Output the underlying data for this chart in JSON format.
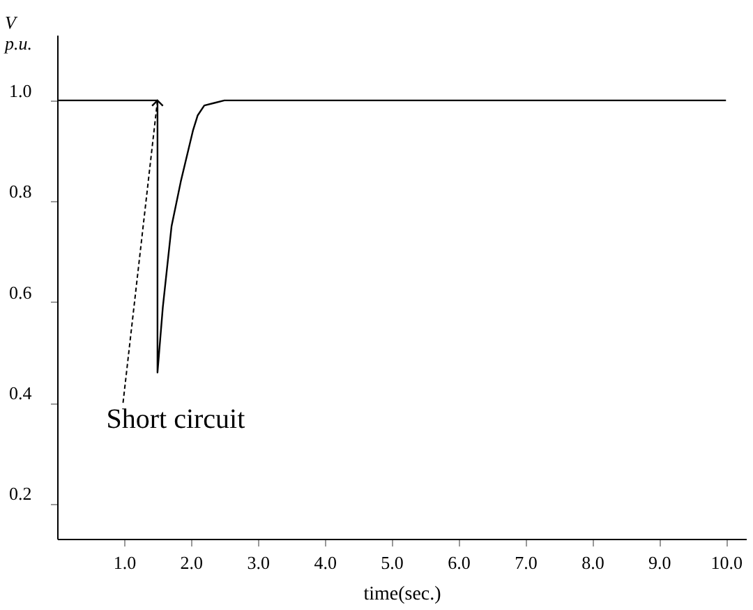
{
  "chart_data": {
    "type": "line",
    "xlabel": "time(sec.)",
    "ylabel": "V\np.u.",
    "series": [
      {
        "color": "#000000",
        "x": [
          0,
          1.5,
          1.5,
          1.58,
          1.71,
          1.85,
          2.03,
          2.1,
          2.2,
          2.35,
          2.5,
          10.0
        ],
        "values": [
          1.0,
          1.0,
          0.46,
          0.59,
          0.75,
          0.84,
          0.94,
          0.97,
          0.99,
          0.995,
          1.0,
          1.0
        ]
      }
    ],
    "xlim": [
      0,
      10.3
    ],
    "ylim": [
      0.13,
      1.13
    ],
    "xticks": [
      {
        "value": 1,
        "label": "1.0"
      },
      {
        "value": 2,
        "label": "2.0"
      },
      {
        "value": 3,
        "label": "3.0"
      },
      {
        "value": 4,
        "label": "4.0"
      },
      {
        "value": 5,
        "label": "5.0"
      },
      {
        "value": 6,
        "label": "6.0"
      },
      {
        "value": 7,
        "label": "7.0"
      },
      {
        "value": 8,
        "label": "8.0"
      },
      {
        "value": 9,
        "label": "9.0"
      },
      {
        "value": 10,
        "label": "10.0"
      }
    ],
    "yticks": [
      0.2,
      0.4,
      0.6,
      0.8,
      {
        "value": 1.0,
        "label": "1.0"
      }
    ],
    "annotations": [
      {
        "text": "Short circuit",
        "x": 1.5,
        "y": 1.0
      }
    ],
    "grid": false,
    "marker": "none",
    "line_style": "solid"
  }
}
